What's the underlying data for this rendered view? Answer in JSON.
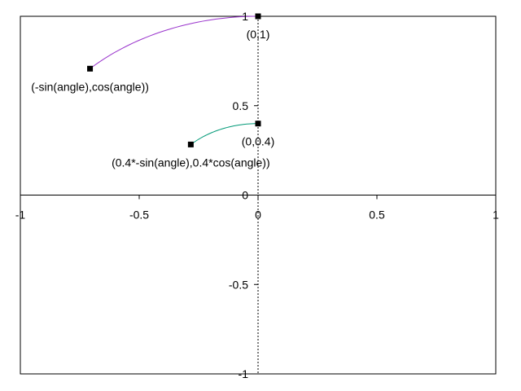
{
  "chart_data": {
    "type": "scatter",
    "xlim": [
      -1,
      1
    ],
    "ylim": [
      -1,
      1
    ],
    "grid": false,
    "legend": "none",
    "x_ticks": [
      {
        "value": -1,
        "label": "-1"
      },
      {
        "value": -0.5,
        "label": "-0.5"
      },
      {
        "value": 0,
        "label": "0"
      },
      {
        "value": 0.5,
        "label": "0.5"
      },
      {
        "value": 1,
        "label": "1"
      }
    ],
    "y_ticks": [
      {
        "value": 1,
        "label": "1"
      },
      {
        "value": 0.5,
        "label": "0.5"
      },
      {
        "value": 0,
        "label": "0"
      },
      {
        "value": -0.5,
        "label": "-0.5"
      },
      {
        "value": -1,
        "label": "-1"
      }
    ],
    "arcs": [
      {
        "radius": 1,
        "start_angle_deg": 0,
        "end_angle_deg": 45,
        "color": "#9933cc"
      },
      {
        "radius": 0.4,
        "start_angle_deg": 0,
        "end_angle_deg": 45,
        "color": "#009977"
      }
    ],
    "points": [
      {
        "x": 0,
        "y": 1,
        "label": "(0,1)"
      },
      {
        "x": -0.707,
        "y": 0.707,
        "label": "(-sin(angle),cos(angle))"
      },
      {
        "x": 0,
        "y": 0.4,
        "label": "(0,0.4)"
      },
      {
        "x": -0.283,
        "y": 0.283,
        "label": "(0.4*-sin(angle),0.4*cos(angle))"
      }
    ],
    "colors": {
      "axis": "#000000",
      "frame": "#000000",
      "marker": "#000000"
    }
  }
}
